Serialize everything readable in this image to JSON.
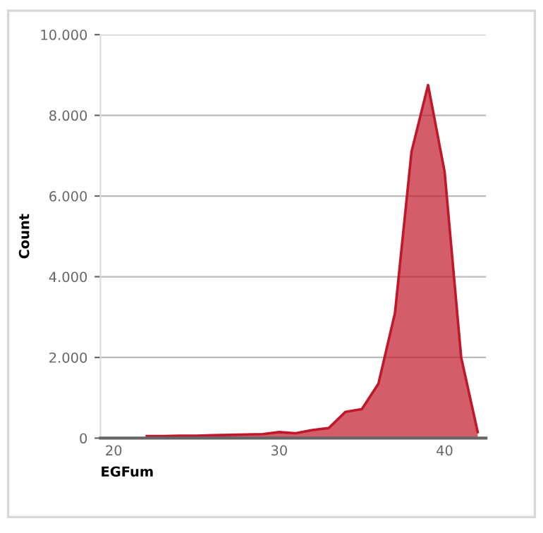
{
  "chart_data": {
    "type": "area",
    "xlabel": "EGFum",
    "ylabel": "Count",
    "x": [
      22,
      23,
      24,
      25,
      26,
      27,
      28,
      29,
      30,
      31,
      32,
      33,
      34,
      35,
      36,
      37,
      38,
      39,
      40,
      41,
      42
    ],
    "series": [
      {
        "color": "#c0182a",
        "values": [
          50,
          50,
          60,
          60,
          70,
          80,
          90,
          100,
          150,
          120,
          200,
          250,
          650,
          720,
          1350,
          3100,
          7100,
          8750,
          6600,
          2000,
          150
        ]
      }
    ],
    "xlim": [
      19.2,
      42.5
    ],
    "xticks": [
      20,
      30,
      40
    ],
    "ylim": [
      0,
      10000
    ],
    "yticks": [
      0,
      {
        "value": 2000,
        "label": "2.000"
      },
      {
        "value": 4000,
        "label": "4.000"
      },
      {
        "value": 6000,
        "label": "6.000"
      },
      {
        "value": 8000,
        "label": "8.000"
      },
      {
        "value": 10000,
        "label": "10.000"
      }
    ],
    "grid": "y",
    "legend": false
  }
}
